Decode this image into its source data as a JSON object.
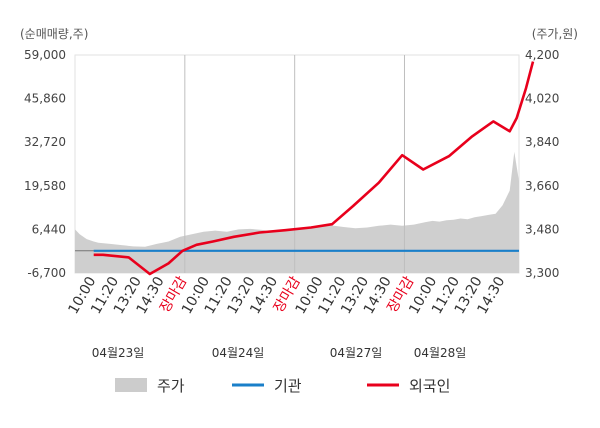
{
  "chart_data": {
    "type": "line",
    "left_axis": {
      "label": "(순매매량,주)",
      "ticks": [
        "59,000",
        "45,860",
        "32,720",
        "19,580",
        "6,440",
        "-6,700"
      ],
      "range": [
        -6700,
        59000
      ]
    },
    "right_axis": {
      "label": "(주가,원)",
      "ticks": [
        "4,200",
        "4,020",
        "3,840",
        "3,660",
        "3,480",
        "3,300"
      ],
      "range": [
        3300,
        4200
      ]
    },
    "x_ticks": [
      {
        "label": "10:00",
        "color": "#333333"
      },
      {
        "label": "11:20",
        "color": "#333333"
      },
      {
        "label": "13:20",
        "color": "#333333"
      },
      {
        "label": "14:30",
        "color": "#333333"
      },
      {
        "label": "장마감",
        "color": "#e8001c"
      },
      {
        "label": "10:00",
        "color": "#333333"
      },
      {
        "label": "11:20",
        "color": "#333333"
      },
      {
        "label": "13:20",
        "color": "#333333"
      },
      {
        "label": "14:30",
        "color": "#333333"
      },
      {
        "label": "장마감",
        "color": "#e8001c"
      },
      {
        "label": "10:00",
        "color": "#333333"
      },
      {
        "label": "11:20",
        "color": "#333333"
      },
      {
        "label": "13:20",
        "color": "#333333"
      },
      {
        "label": "14:30",
        "color": "#333333"
      },
      {
        "label": "장마감",
        "color": "#e8001c"
      },
      {
        "label": "10:00",
        "color": "#333333"
      },
      {
        "label": "11:20",
        "color": "#333333"
      },
      {
        "label": "13:20",
        "color": "#333333"
      },
      {
        "label": "14:30",
        "color": "#333333"
      }
    ],
    "dates": [
      "04월23일",
      "04월24일",
      "04월27일",
      "04월28일"
    ],
    "legend": [
      {
        "name": "주가",
        "color": "#cccccc",
        "kind": "area"
      },
      {
        "name": "기관",
        "color": "#1a7fc9",
        "kind": "line"
      },
      {
        "name": "외국인",
        "color": "#e8001c",
        "kind": "line"
      }
    ],
    "series": [
      {
        "name": "주가",
        "axis": "right",
        "x": [
          0,
          0.2,
          0.5,
          0.8,
          1,
          1.5,
          2,
          2.5,
          3,
          3.5,
          4,
          4.5,
          5,
          5.5,
          6,
          6.5,
          7,
          7.5,
          8,
          8.5,
          9,
          9.5,
          10,
          10.5,
          11,
          11.5,
          12,
          12.5,
          13,
          13.5,
          14,
          14.5,
          15,
          15.3,
          15.6,
          15.9,
          16.2,
          16.5,
          16.8,
          17.1,
          17.4,
          17.7,
          18,
          18.3,
          18.6,
          18.8,
          19
        ],
        "values": [
          3480,
          3460,
          3440,
          3430,
          3425,
          3420,
          3415,
          3410,
          3408,
          3420,
          3430,
          3450,
          3460,
          3470,
          3475,
          3470,
          3480,
          3482,
          3478,
          3470,
          3475,
          3480,
          3490,
          3493,
          3496,
          3490,
          3485,
          3488,
          3495,
          3500,
          3495,
          3500,
          3510,
          3515,
          3512,
          3518,
          3520,
          3525,
          3522,
          3530,
          3535,
          3540,
          3545,
          3580,
          3640,
          3800,
          3680
        ]
      },
      {
        "name": "기관",
        "axis": "left",
        "x": [
          0.8,
          19
        ],
        "values": [
          0,
          0
        ]
      },
      {
        "name": "외국인",
        "axis": "left",
        "x": [
          0.8,
          1.2,
          2.3,
          3.2,
          4,
          4.6,
          5.2,
          5.9,
          6.8,
          7.9,
          9,
          10.1,
          11,
          11.9,
          13,
          14,
          14.9,
          16,
          17,
          17.9,
          18.6,
          18.9,
          19.3,
          19.6
        ],
        "values": [
          -1200,
          -1200,
          -2000,
          -7000,
          -3800,
          0,
          1800,
          2800,
          4200,
          5500,
          6200,
          7000,
          8000,
          13500,
          20500,
          28800,
          24500,
          28500,
          34500,
          39000,
          36000,
          40000,
          49000,
          57000
        ]
      }
    ]
  }
}
